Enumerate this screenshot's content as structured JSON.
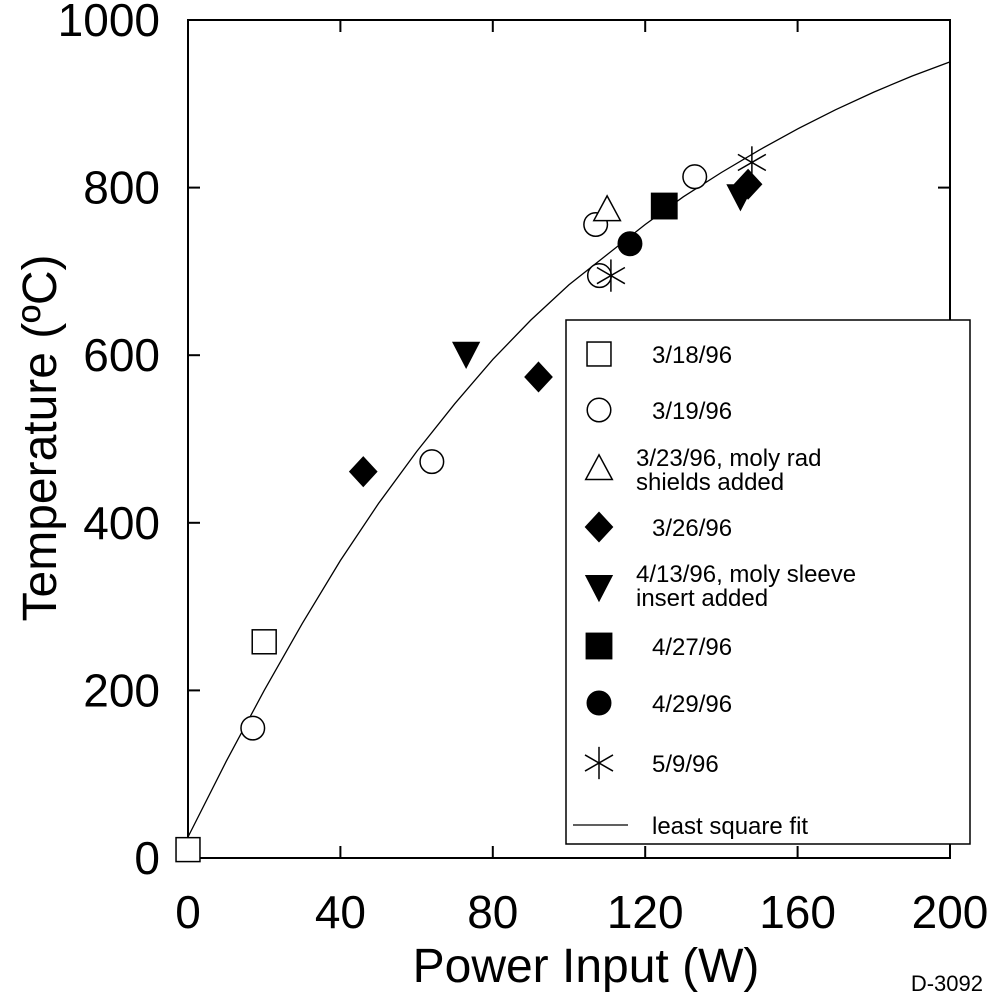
{
  "chart_data": {
    "type": "scatter",
    "title": "",
    "xlabel": "Power Input (W)",
    "ylabel": "Temperature (ºC)",
    "xlim": [
      0,
      200
    ],
    "ylim": [
      0,
      1000
    ],
    "xticks": [
      "0",
      "40",
      "80",
      "120",
      "160",
      "200"
    ],
    "yticks": [
      "0",
      "200",
      "400",
      "600",
      "800",
      "1000"
    ],
    "grid": false,
    "legend_position": "bottom-right",
    "footnote": "D-3092",
    "series": [
      {
        "name": "3/18/96",
        "marker": "open-square",
        "x": [
          0,
          20
        ],
        "y": [
          10,
          258
        ]
      },
      {
        "name": "3/19/96",
        "marker": "open-circle",
        "x": [
          17,
          64,
          107,
          108,
          133
        ],
        "y": [
          155,
          473,
          756,
          695,
          813
        ]
      },
      {
        "name": "3/23/96, moly rad shields added",
        "legend_lines": [
          "3/23/96, moly rad",
          "shields added"
        ],
        "marker": "open-triangle",
        "x": [
          110
        ],
        "y": [
          772
        ]
      },
      {
        "name": "3/26/96",
        "marker": "filled-diamond",
        "x": [
          46,
          92,
          147
        ],
        "y": [
          461,
          574,
          804
        ]
      },
      {
        "name": "4/13/96, moly sleeve insert added",
        "legend_lines": [
          "4/13/96, moly sleeve",
          "insert added"
        ],
        "marker": "filled-down-triangle",
        "x": [
          73,
          145
        ],
        "y": [
          603,
          791
        ]
      },
      {
        "name": "4/27/96",
        "marker": "filled-square",
        "x": [
          125
        ],
        "y": [
          778
        ]
      },
      {
        "name": "4/29/96",
        "marker": "filled-circle",
        "x": [
          116
        ],
        "y": [
          733
        ]
      },
      {
        "name": "5/9/96",
        "marker": "asterisk",
        "x": [
          111,
          148
        ],
        "y": [
          695,
          830
        ]
      }
    ],
    "fit": {
      "name": "least square fit",
      "x": [
        0,
        10,
        20,
        30,
        40,
        50,
        60,
        70,
        80,
        90,
        100,
        110,
        120,
        130,
        140,
        150,
        160,
        170,
        180,
        190,
        200
      ],
      "y": [
        25,
        115,
        200,
        280,
        355,
        423,
        485,
        542,
        595,
        642,
        684,
        720,
        756,
        789,
        818,
        845,
        870,
        893,
        914,
        933,
        950
      ]
    }
  }
}
